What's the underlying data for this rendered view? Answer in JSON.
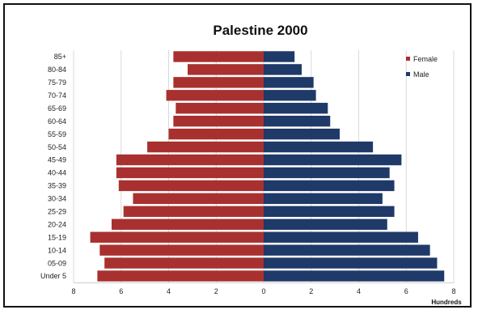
{
  "chart_data": {
    "type": "bar",
    "orientation": "horizontal",
    "title": "Palestine  2000",
    "unit_label": "Hundreds",
    "categories": [
      "85+",
      "80-84",
      "75-79",
      "70-74",
      "65-69",
      "60-64",
      "55-59",
      "50-54",
      "45-49",
      "40-44",
      "35-39",
      "30-34",
      "25-29",
      "20-24",
      "15-19",
      "10-14",
      "05-09",
      "Under 5"
    ],
    "series": [
      {
        "name": "Female",
        "color": "#a8312f",
        "values": [
          3.8,
          3.2,
          3.8,
          4.1,
          3.7,
          3.8,
          4.0,
          4.9,
          6.2,
          6.2,
          6.1,
          5.5,
          5.9,
          6.4,
          7.3,
          6.9,
          6.7,
          7.0
        ]
      },
      {
        "name": "Male",
        "color": "#1f3a68",
        "values": [
          1.3,
          1.6,
          2.1,
          2.2,
          2.7,
          2.8,
          3.2,
          4.6,
          5.8,
          5.3,
          5.5,
          5.0,
          5.5,
          5.2,
          6.5,
          7.0,
          7.3,
          7.6
        ]
      }
    ],
    "xticks": [
      "8",
      "6",
      "4",
      "2",
      "0",
      "2",
      "4",
      "6",
      "8"
    ],
    "xlim": [
      -8,
      8
    ],
    "legend_position": "top-right",
    "grid": "vertical"
  }
}
